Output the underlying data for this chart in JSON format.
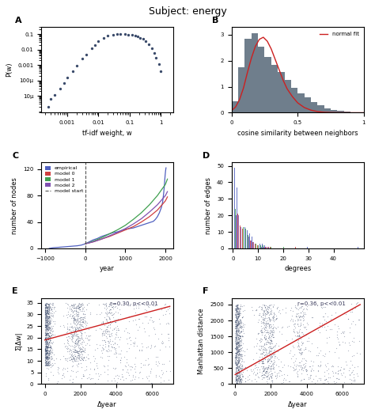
{
  "title": "Subject: energy",
  "panel_A": {
    "x": [
      0.00025,
      0.0003,
      0.0004,
      0.0006,
      0.0008,
      0.001,
      0.0015,
      0.002,
      0.003,
      0.004,
      0.006,
      0.008,
      0.01,
      0.015,
      0.02,
      0.03,
      0.04,
      0.05,
      0.07,
      0.09,
      0.12,
      0.15,
      0.18,
      0.22,
      0.27,
      0.33,
      0.4,
      0.5,
      0.6,
      0.7,
      0.85,
      1.0
    ],
    "y": [
      2e-06,
      6e-06,
      1.2e-05,
      3e-05,
      7e-05,
      0.00015,
      0.0004,
      0.0009,
      0.0025,
      0.005,
      0.012,
      0.02,
      0.035,
      0.06,
      0.08,
      0.095,
      0.1,
      0.1,
      0.098,
      0.095,
      0.088,
      0.08,
      0.072,
      0.06,
      0.048,
      0.035,
      0.022,
      0.012,
      0.006,
      0.003,
      0.0012,
      0.0004
    ],
    "xlabel": "tf-idf weight, w",
    "ylabel": "P(w)",
    "dot_color": "#3a4a6a"
  },
  "panel_B": {
    "hist_edges": [
      0.0,
      0.05,
      0.1,
      0.15,
      0.2,
      0.25,
      0.3,
      0.35,
      0.4,
      0.45,
      0.5,
      0.55,
      0.6,
      0.65,
      0.7,
      0.75,
      0.8,
      0.85,
      0.9,
      0.95,
      1.0
    ],
    "hist_heights": [
      0.45,
      1.75,
      2.85,
      3.05,
      2.55,
      2.15,
      1.85,
      1.55,
      1.25,
      0.95,
      0.75,
      0.58,
      0.42,
      0.28,
      0.18,
      0.12,
      0.07,
      0.04,
      0.02,
      0.01
    ],
    "normal_fit_x": [
      0.0,
      0.03,
      0.06,
      0.09,
      0.12,
      0.15,
      0.18,
      0.21,
      0.24,
      0.27,
      0.3,
      0.33,
      0.36,
      0.39,
      0.42,
      0.46,
      0.5,
      0.55,
      0.6,
      0.65,
      0.7,
      0.75,
      0.8,
      0.85,
      0.9,
      0.95,
      1.0
    ],
    "normal_fit_y": [
      0.08,
      0.22,
      0.5,
      0.95,
      1.55,
      2.1,
      2.55,
      2.82,
      2.9,
      2.75,
      2.45,
      2.05,
      1.65,
      1.25,
      0.92,
      0.62,
      0.38,
      0.2,
      0.1,
      0.045,
      0.018,
      0.007,
      0.002,
      0.001,
      0.0,
      0.0,
      0.0
    ],
    "xlabel": "cosine similarity between neighbors",
    "ylabel": "",
    "bar_color": "#5f7080",
    "fit_color": "#cc2020",
    "legend_label": "normal fit",
    "xlim": [
      0,
      1
    ],
    "ylim": [
      0,
      3.3
    ]
  },
  "panel_C": {
    "xlabel": "year",
    "ylabel": "number of nodes",
    "xlim": [
      -1100,
      2200
    ],
    "ylim": [
      0,
      130
    ],
    "yticks": [
      0,
      40,
      80,
      120
    ],
    "xticks": [
      -1000,
      0,
      1000,
      2000
    ],
    "empirical_x": [
      -900,
      -800,
      -600,
      -400,
      -200,
      -100,
      0,
      100,
      200,
      300,
      400,
      500,
      600,
      700,
      800,
      900,
      1000,
      1100,
      1200,
      1300,
      1400,
      1500,
      1600,
      1700,
      1750,
      1800,
      1850,
      1900,
      1930,
      1950,
      1970,
      1985,
      1995,
      2005,
      2015
    ],
    "empirical_y": [
      0,
      1,
      2,
      3,
      4,
      5,
      7,
      10,
      13,
      15,
      18,
      20,
      22,
      24,
      25,
      27,
      29,
      30,
      31,
      33,
      35,
      37,
      39,
      41,
      44,
      48,
      54,
      62,
      70,
      80,
      92,
      105,
      112,
      118,
      122
    ],
    "model0_x": [
      0,
      200,
      400,
      600,
      800,
      1000,
      1200,
      1400,
      1600,
      1800,
      2000,
      2050
    ],
    "model0_y": [
      7,
      10,
      14,
      18,
      23,
      28,
      33,
      40,
      48,
      58,
      72,
      78
    ],
    "model1_x": [
      0,
      200,
      400,
      600,
      800,
      1000,
      1200,
      1400,
      1600,
      1800,
      2000,
      2050
    ],
    "model1_y": [
      7,
      11,
      16,
      22,
      28,
      35,
      44,
      54,
      66,
      80,
      97,
      105
    ],
    "model2_x": [
      0,
      200,
      400,
      600,
      800,
      1000,
      1200,
      1400,
      1600,
      1800,
      2000,
      2050
    ],
    "model2_y": [
      7,
      10,
      14,
      19,
      24,
      30,
      37,
      45,
      55,
      66,
      80,
      86
    ],
    "colors": {
      "empirical": "#5060c0",
      "model0": "#d04040",
      "model1": "#40a050",
      "model2": "#8050b0"
    },
    "dashed_color": "#555555",
    "vline_x": 0
  },
  "panel_D": {
    "xlabel": "degrees",
    "ylabel": "number of edges",
    "xlim": [
      -0.5,
      52
    ],
    "ylim": [
      0,
      52
    ],
    "degrees": [
      1,
      2,
      3,
      4,
      5,
      6,
      7,
      8,
      9,
      10,
      11,
      12,
      13,
      14,
      15,
      20,
      25,
      30,
      50
    ],
    "empirical_counts": [
      49,
      37,
      24,
      22,
      13,
      11,
      9,
      7,
      5,
      4,
      3,
      3,
      2,
      2,
      1,
      1,
      0,
      1,
      1
    ],
    "model0_counts": [
      22,
      21,
      14,
      12,
      10,
      7,
      5,
      4,
      3,
      2,
      2,
      1,
      1,
      1,
      1,
      0,
      1,
      0,
      0
    ],
    "model1_counts": [
      24,
      23,
      15,
      13,
      12,
      8,
      6,
      5,
      3,
      2,
      2,
      2,
      1,
      1,
      1,
      1,
      0,
      0,
      0
    ],
    "model2_counts": [
      20,
      20,
      13,
      11,
      9,
      7,
      5,
      4,
      3,
      2,
      1,
      1,
      1,
      1,
      0,
      0,
      0,
      0,
      0
    ],
    "colors": {
      "empirical": "#5060c0",
      "model0": "#d04040",
      "model1": "#40a050",
      "model2": "#8050b0"
    },
    "yticks": [
      0,
      10,
      20,
      30,
      40,
      50
    ],
    "xticks": [
      0,
      10,
      20,
      30,
      40
    ]
  },
  "panel_E": {
    "xlabel": "Δyear",
    "ylabel": "Σ|Δw|",
    "xlim": [
      -200,
      7200
    ],
    "ylim": [
      0,
      37
    ],
    "yticks": [
      0,
      5,
      10,
      15,
      20,
      25,
      30,
      35
    ],
    "xticks": [
      0,
      2000,
      4000,
      6000
    ],
    "corr_text": "r=0.30, p<<0.01",
    "scatter_color": "#3a4a6a",
    "line_color": "#cc2020",
    "line_x": [
      0,
      7000
    ],
    "line_y": [
      19.0,
      33.5
    ]
  },
  "panel_F": {
    "xlabel": "Δyear",
    "ylabel": "Manhattan distance",
    "xlim": [
      -200,
      7200
    ],
    "ylim": [
      0,
      2700
    ],
    "yticks": [
      0,
      500,
      1000,
      1500,
      2000,
      2500
    ],
    "xticks": [
      0,
      2000,
      4000,
      6000
    ],
    "corr_text": "r=0.36, p<<0.01",
    "scatter_color": "#3a4a6a",
    "line_color": "#cc2020",
    "line_x": [
      0,
      7000
    ],
    "line_y": [
      300,
      2500
    ]
  }
}
